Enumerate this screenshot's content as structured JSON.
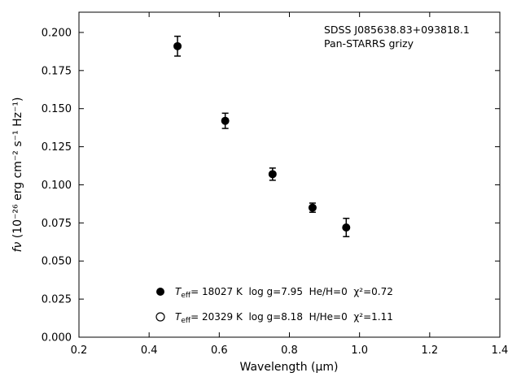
{
  "colors": {
    "foreground": "#000000",
    "background": "#ffffff"
  },
  "annotation": {
    "line1": "SDSS J085638.83+093818.1",
    "line2": "Pan-STARRS grizy"
  },
  "chart_data": {
    "type": "scatter",
    "xlabel": "Wavelength (μm)",
    "ylabel_symbol": "fν",
    "ylabel_units": " (10⁻²⁶ erg cm⁻² s⁻¹ Hz⁻¹)",
    "xlim": [
      0.2,
      1.4
    ],
    "ylim": [
      0.0,
      0.2133
    ],
    "grid": false,
    "x_ticks": [
      0.2,
      0.4,
      0.6,
      0.8,
      1.0,
      1.2,
      1.4
    ],
    "x_tick_labels": [
      "0.2",
      "0.4",
      "0.6",
      "0.8",
      "1.0",
      "1.2",
      "1.4"
    ],
    "y_ticks": [
      0.0,
      0.025,
      0.05,
      0.075,
      0.1,
      0.125,
      0.15,
      0.175,
      0.2
    ],
    "y_tick_labels": [
      "0.000",
      "0.025",
      "0.050",
      "0.075",
      "0.100",
      "0.125",
      "0.150",
      "0.175",
      "0.200"
    ],
    "series": [
      {
        "name": "Pan-STARRS grizy photometry",
        "marker": "filled-circle",
        "x": [
          0.481,
          0.617,
          0.752,
          0.866,
          0.962
        ],
        "y": [
          0.191,
          0.142,
          0.107,
          0.085,
          0.072
        ],
        "yerr": [
          0.0065,
          0.005,
          0.004,
          0.003,
          0.006
        ]
      }
    ],
    "legend": {
      "position": "lower-center-inside",
      "entries": [
        {
          "marker": "filled-circle",
          "t": "T",
          "sub": "eff",
          "rest": "= 18027 K  log g=7.95  He/H=0  χ²=0.72"
        },
        {
          "marker": "open-circle",
          "t": "T",
          "sub": "eff",
          "rest": "= 20329 K  log g=8.18  H/He=0  χ²=1.11"
        }
      ]
    }
  }
}
